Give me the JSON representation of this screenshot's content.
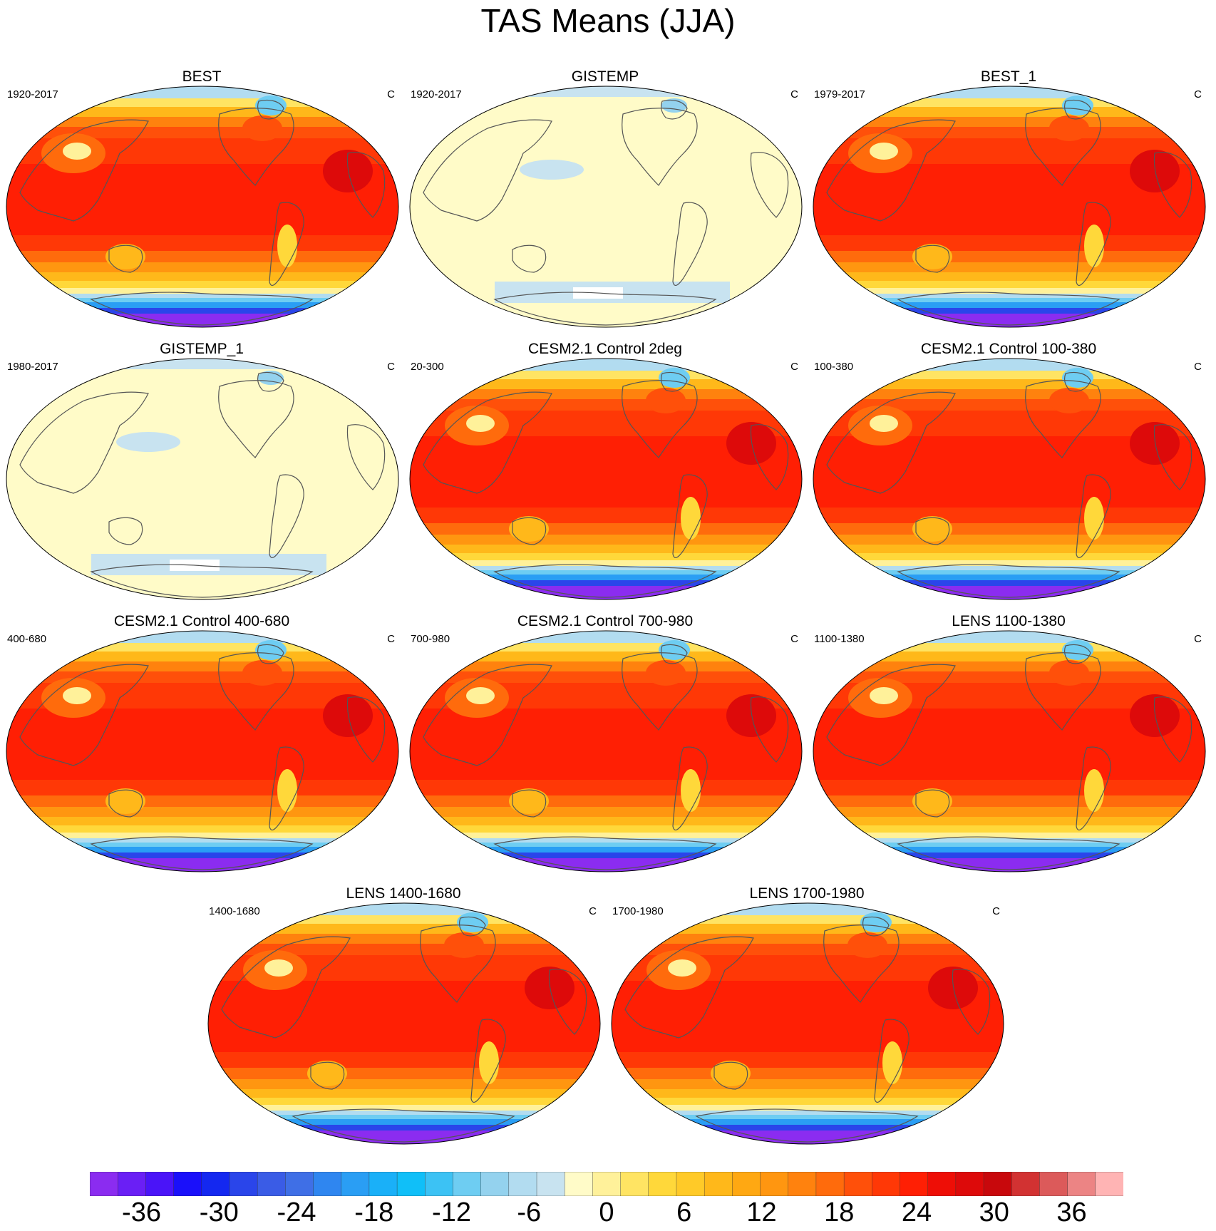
{
  "title": "TAS Means (JJA)",
  "units": "C",
  "panels": [
    {
      "title": "BEST",
      "period": "1920-2017",
      "units": "C",
      "style": "model"
    },
    {
      "title": "GISTEMP",
      "period": "1920-2017",
      "units": "C",
      "style": "anomaly"
    },
    {
      "title": "BEST_1",
      "period": "1979-2017",
      "units": "C",
      "style": "model"
    },
    {
      "title": "GISTEMP_1",
      "period": "1980-2017",
      "units": "C",
      "style": "anomaly"
    },
    {
      "title": "CESM2.1 Control 2deg",
      "period": "20-300",
      "units": "C",
      "style": "model"
    },
    {
      "title": "CESM2.1 Control 100-380",
      "period": "100-380",
      "units": "C",
      "style": "model"
    },
    {
      "title": "CESM2.1 Control 400-680",
      "period": "400-680",
      "units": "C",
      "style": "model"
    },
    {
      "title": "CESM2.1 Control 700-980",
      "period": "700-980",
      "units": "C",
      "style": "model"
    },
    {
      "title": "LENS 1100-1380",
      "period": "1100-1380",
      "units": "C",
      "style": "model"
    },
    {
      "title": "LENS 1400-1680",
      "period": "1400-1680",
      "units": "C",
      "style": "model"
    },
    {
      "title": "LENS 1700-1980",
      "period": "1700-1980",
      "units": "C",
      "style": "model"
    }
  ],
  "colorbar": {
    "colors": [
      "#8b2cf0",
      "#6a1ff5",
      "#4a14f8",
      "#1a10fa",
      "#1428f0",
      "#2a45ea",
      "#3a5ce6",
      "#3f6fe6",
      "#2f86f0",
      "#2a9ef4",
      "#1ab0f8",
      "#10bff8",
      "#3cc2f4",
      "#6ecdf2",
      "#94d2ee",
      "#b2dcf0",
      "#c8e3f0",
      "#fffbc8",
      "#fff19a",
      "#ffe463",
      "#ffd83a",
      "#ffca28",
      "#ffb81a",
      "#ffa812",
      "#ff9610",
      "#ff820e",
      "#ff6b0c",
      "#ff500a",
      "#ff3806",
      "#ff1f04",
      "#ee0e06",
      "#dd0a0a",
      "#c8080c",
      "#d23232",
      "#dc5a5a",
      "#ec8484",
      "#ffb4b4"
    ],
    "labels": [
      "-36",
      "-30",
      "-24",
      "-18",
      "-12",
      "-6",
      "0",
      "6",
      "12",
      "18",
      "24",
      "30",
      "36"
    ],
    "label_values": [
      -36,
      -30,
      -24,
      -18,
      -12,
      -6,
      0,
      6,
      12,
      18,
      24,
      30,
      36
    ],
    "min": -40,
    "max": 40
  }
}
